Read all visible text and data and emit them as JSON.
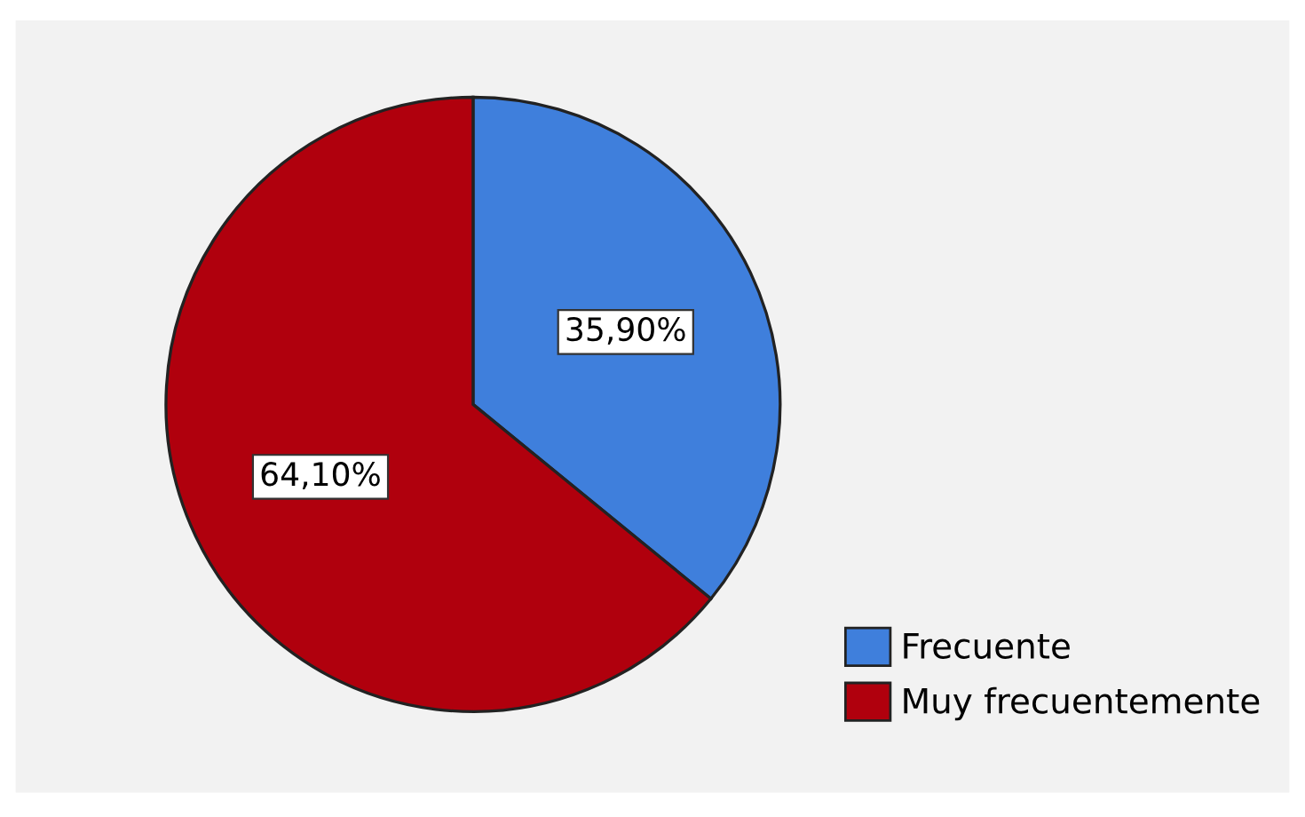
{
  "chart_data": {
    "type": "pie",
    "categories": [
      "Frecuente",
      "Muy frecuentemente"
    ],
    "values": [
      35.9,
      64.1
    ],
    "colors": [
      "#3f7fdc",
      "#b0000d"
    ],
    "value_labels": [
      "35,90%",
      "64,10%"
    ],
    "legend": "bottom right"
  }
}
